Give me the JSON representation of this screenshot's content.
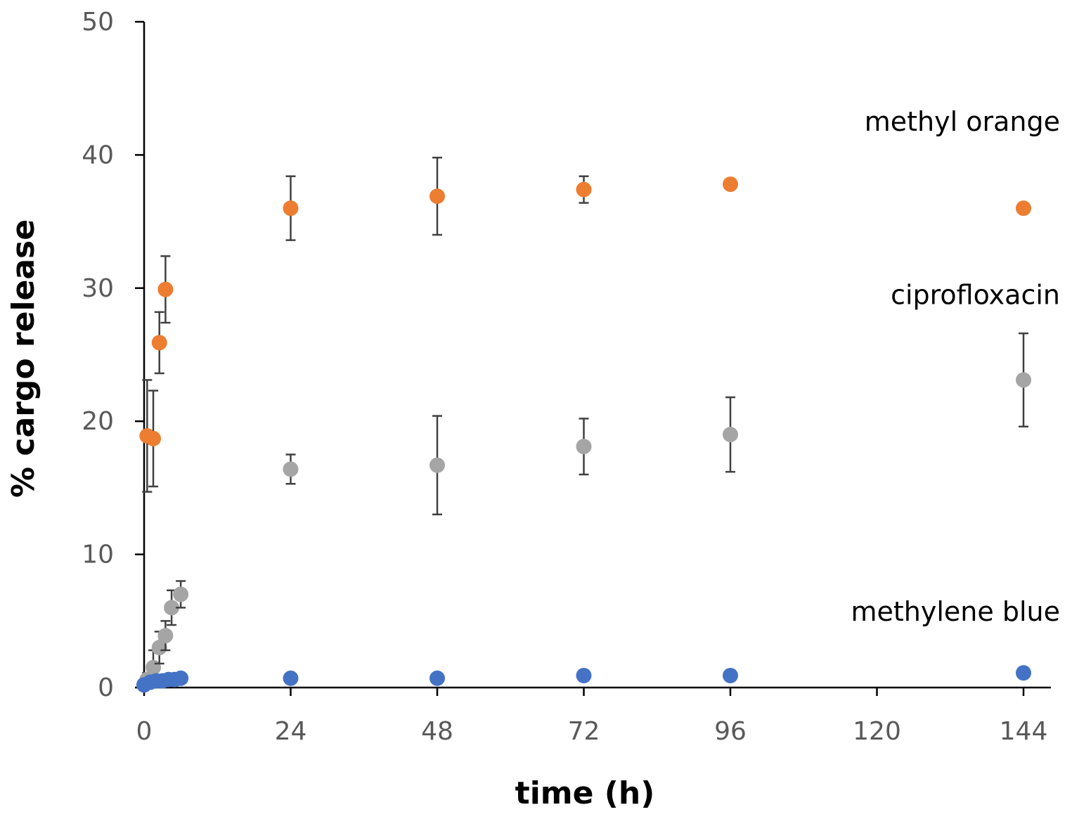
{
  "chart_data": {
    "type": "scatter",
    "title": "",
    "xlabel": "time (h)",
    "ylabel": "% cargo release",
    "xlim": [
      0,
      144
    ],
    "ylim": [
      0,
      50
    ],
    "xticks": [
      0,
      24,
      48,
      72,
      96,
      120,
      144
    ],
    "yticks": [
      0,
      10,
      20,
      30,
      40,
      50
    ],
    "grid": false,
    "series": [
      {
        "name": "methyl orange",
        "color": "#ED7D31",
        "label_anchor": {
          "x": 144,
          "y": 42.5
        },
        "points": [
          {
            "x": 0,
            "y": 0.2,
            "err": 0
          },
          {
            "x": 0.5,
            "y": 18.9,
            "err": 4.2
          },
          {
            "x": 1.5,
            "y": 18.7,
            "err": 3.6
          },
          {
            "x": 2.5,
            "y": 25.9,
            "err": 2.3
          },
          {
            "x": 3.5,
            "y": 29.9,
            "err": 2.5
          },
          {
            "x": 24,
            "y": 36.0,
            "err": 2.4
          },
          {
            "x": 48,
            "y": 36.9,
            "err": 2.9
          },
          {
            "x": 72,
            "y": 37.4,
            "err": 1.0
          },
          {
            "x": 96,
            "y": 37.8,
            "err": 0.3
          },
          {
            "x": 144,
            "y": 36.0,
            "err": 0.2
          }
        ]
      },
      {
        "name": "ciprofloxacin",
        "color": "#A5A5A5",
        "label_anchor": {
          "x": 144,
          "y": 29.5
        },
        "points": [
          {
            "x": 0,
            "y": 0.2,
            "err": 0
          },
          {
            "x": 0.5,
            "y": 0.6,
            "err": 0.5
          },
          {
            "x": 1.5,
            "y": 1.5,
            "err": 1.3
          },
          {
            "x": 2.5,
            "y": 3.0,
            "err": 1.2
          },
          {
            "x": 3.5,
            "y": 3.9,
            "err": 1.1
          },
          {
            "x": 4.5,
            "y": 6.0,
            "err": 1.3
          },
          {
            "x": 6,
            "y": 7.0,
            "err": 1.0
          },
          {
            "x": 24,
            "y": 16.4,
            "err": 1.1
          },
          {
            "x": 48,
            "y": 16.7,
            "err": 3.7
          },
          {
            "x": 72,
            "y": 18.1,
            "err": 2.1
          },
          {
            "x": 96,
            "y": 19.0,
            "err": 2.8
          },
          {
            "x": 144,
            "y": 23.1,
            "err": 3.5
          }
        ]
      },
      {
        "name": "methylene blue",
        "color": "#4472C4",
        "label_anchor": {
          "x": 144,
          "y": 5.7
        },
        "points": [
          {
            "x": 0,
            "y": 0.2,
            "err": 0
          },
          {
            "x": 1,
            "y": 0.4,
            "err": 0
          },
          {
            "x": 2,
            "y": 0.5,
            "err": 0
          },
          {
            "x": 3,
            "y": 0.5,
            "err": 0
          },
          {
            "x": 4,
            "y": 0.6,
            "err": 0
          },
          {
            "x": 5,
            "y": 0.6,
            "err": 0
          },
          {
            "x": 6,
            "y": 0.7,
            "err": 0
          },
          {
            "x": 24,
            "y": 0.7,
            "err": 0
          },
          {
            "x": 48,
            "y": 0.7,
            "err": 0
          },
          {
            "x": 72,
            "y": 0.9,
            "err": 0
          },
          {
            "x": 96,
            "y": 0.9,
            "err": 0
          },
          {
            "x": 144,
            "y": 1.1,
            "err": 0
          }
        ]
      }
    ]
  }
}
